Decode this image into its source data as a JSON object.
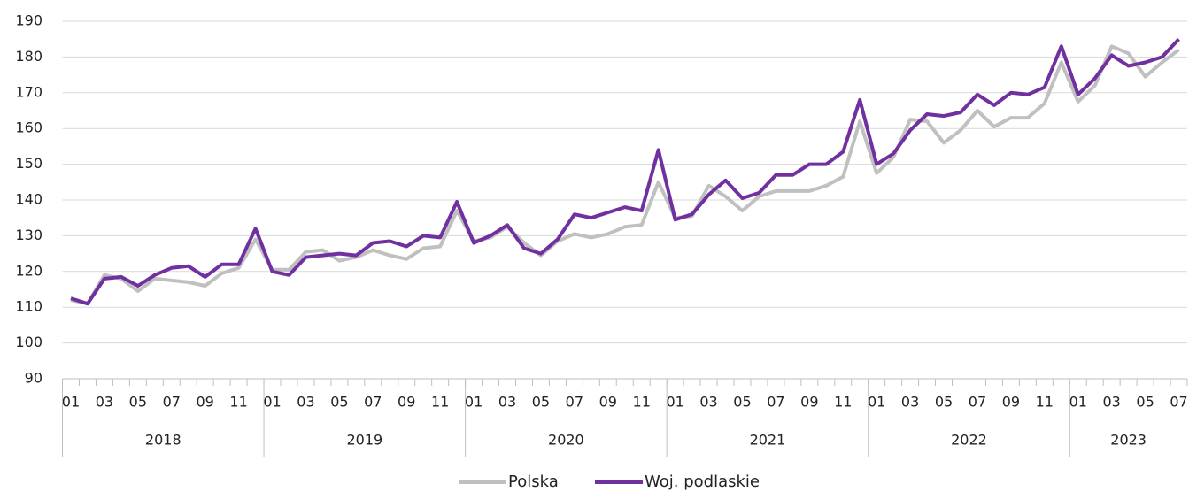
{
  "chart_data": {
    "type": "line",
    "categories": [
      "01",
      null,
      "03",
      null,
      "05",
      null,
      "07",
      null,
      "09",
      null,
      "11",
      null,
      "01",
      null,
      "03",
      null,
      "05",
      null,
      "07",
      null,
      "09",
      null,
      "11",
      null,
      "01",
      null,
      "03",
      null,
      "05",
      null,
      "07",
      null,
      "09",
      null,
      "11",
      null,
      "01",
      null,
      "03",
      null,
      "05",
      null,
      "07",
      null,
      "09",
      null,
      "11",
      null,
      "01",
      null,
      "03",
      null,
      "05",
      null,
      "07",
      null,
      "09",
      null,
      "11",
      null,
      "01",
      null,
      "03",
      null,
      "05",
      null,
      "07"
    ],
    "years": [
      "2018",
      "2019",
      "2020",
      "2021",
      "2022",
      "2023"
    ],
    "series": [
      {
        "name": "Polska",
        "color": "#c0c0c0",
        "values": [
          112,
          111,
          119,
          118,
          114.5,
          118,
          117.5,
          117,
          116,
          119.5,
          121,
          129,
          120.5,
          120.5,
          125.5,
          126,
          123,
          124,
          126,
          124.5,
          123.5,
          126.5,
          127,
          137,
          128.5,
          129.5,
          132.5,
          128,
          124.5,
          128.5,
          130.5,
          129.5,
          130.5,
          132.5,
          133,
          145,
          135,
          135.5,
          144,
          141,
          137,
          141,
          142.5,
          142.5,
          142.5,
          144,
          146.5,
          162,
          147.5,
          152,
          162.5,
          162,
          156,
          159.5,
          165,
          160.5,
          163,
          163,
          167,
          178.5,
          167.5,
          172,
          183,
          181,
          174.5,
          178.5,
          182
        ]
      },
      {
        "name": "Woj. podlaskie",
        "color": "#7030a0",
        "values": [
          112.5,
          111,
          118,
          118.5,
          116,
          119,
          121,
          121.5,
          118.5,
          122,
          122,
          132,
          120,
          119,
          124,
          124.5,
          125,
          124.5,
          128,
          128.5,
          127,
          130,
          129.5,
          139.5,
          128,
          130,
          133,
          126.5,
          125,
          129,
          136,
          135,
          136.5,
          138,
          137,
          154,
          134.5,
          136,
          141.5,
          145.5,
          140.5,
          142,
          147,
          147,
          150,
          150,
          153.5,
          168,
          150,
          153,
          159.5,
          164,
          163.5,
          164.5,
          169.5,
          166.5,
          170,
          169.5,
          171.5,
          183,
          169.5,
          174,
          180.5,
          177.5,
          178.5,
          180,
          185
        ]
      }
    ],
    "ylim": [
      90,
      190
    ],
    "yticks": [
      90,
      100,
      110,
      120,
      130,
      140,
      150,
      160,
      170,
      180,
      190
    ],
    "grid": true
  }
}
